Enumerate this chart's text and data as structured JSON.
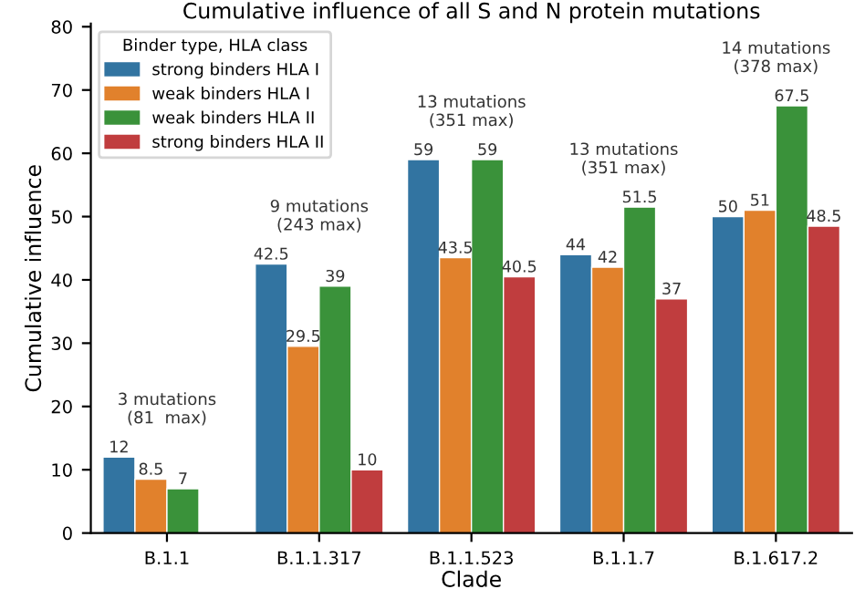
{
  "chart_data": {
    "type": "bar",
    "title": "Cumulative influence of all S and N protein mutations",
    "xlabel": "Clade",
    "ylabel": "Cumulative influence",
    "legend_title": "Binder type, HLA class",
    "categories": [
      "B.1.1",
      "B.1.1.317",
      "B.1.1.523",
      "B.1.1.7",
      "B.1.617.2"
    ],
    "series": [
      {
        "name": "strong binders HLA I",
        "color": "#3274a1",
        "values": [
          12,
          42.5,
          59,
          44,
          50
        ]
      },
      {
        "name": "weak binders HLA I",
        "color": "#e1812c",
        "values": [
          8.5,
          29.5,
          43.5,
          42,
          51
        ]
      },
      {
        "name": "weak binders HLA II",
        "color": "#3a923a",
        "values": [
          7,
          39,
          59,
          51.5,
          67.5
        ]
      },
      {
        "name": "strong binders HLA II",
        "color": "#c03d3e",
        "values": [
          null,
          10,
          40.5,
          37,
          48.5
        ]
      }
    ],
    "ylim": [
      0,
      80.5
    ],
    "yticks": [
      0,
      10,
      20,
      30,
      40,
      50,
      60,
      70,
      80
    ],
    "data_labels": true,
    "legend": "top left",
    "grid": false,
    "annotations": [
      "3 mutations\n(81  max)",
      "9 mutations\n(243 max)",
      "13 mutations\n(351 max)",
      "13 mutations\n(351 max)",
      "14 mutations\n(378 max)"
    ]
  }
}
